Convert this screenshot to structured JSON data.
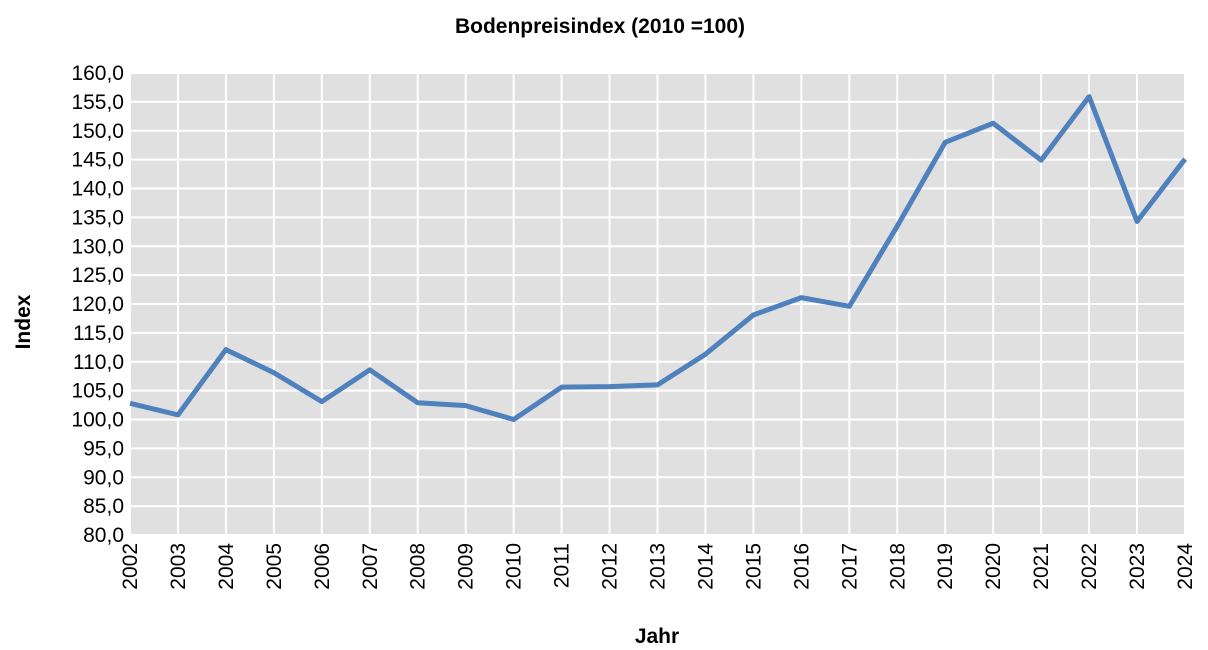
{
  "chart_data": {
    "type": "line",
    "title": "Bodenpreisindex (2010 =100)",
    "xlabel": "Jahr",
    "ylabel": "Index",
    "x": [
      2002,
      2003,
      2004,
      2005,
      2006,
      2007,
      2008,
      2009,
      2010,
      2011,
      2012,
      2013,
      2014,
      2015,
      2016,
      2017,
      2018,
      2019,
      2020,
      2021,
      2022,
      2023,
      2024
    ],
    "series": [
      {
        "name": "Bodenpreisindex",
        "color": "#4f81bd",
        "values": [
          102.8,
          100.8,
          112.1,
          108.1,
          103.1,
          108.6,
          102.9,
          102.4,
          100.0,
          105.6,
          105.7,
          106.0,
          111.3,
          118.1,
          121.1,
          119.6,
          133.5,
          148.0,
          151.3,
          144.9,
          155.9,
          134.3,
          145.1
        ]
      }
    ],
    "xlim": [
      2002,
      2024
    ],
    "xticks": [
      2002,
      2003,
      2004,
      2005,
      2006,
      2007,
      2008,
      2009,
      2010,
      2011,
      2012,
      2013,
      2014,
      2015,
      2016,
      2017,
      2018,
      2019,
      2020,
      2021,
      2022,
      2023,
      2024
    ],
    "ylim": [
      80,
      160
    ],
    "yticks": [
      {
        "value": 80,
        "label": "80,0"
      },
      {
        "value": 85,
        "label": "85,0"
      },
      {
        "value": 90,
        "label": "90,0"
      },
      {
        "value": 95,
        "label": "95,0"
      },
      {
        "value": 100,
        "label": "100,0"
      },
      {
        "value": 105,
        "label": "105,0"
      },
      {
        "value": 110,
        "label": "110,0"
      },
      {
        "value": 115,
        "label": "115,0"
      },
      {
        "value": 120,
        "label": "120,0"
      },
      {
        "value": 125,
        "label": "125,0"
      },
      {
        "value": 130,
        "label": "130,0"
      },
      {
        "value": 135,
        "label": "135,0"
      },
      {
        "value": 140,
        "label": "140,0"
      },
      {
        "value": 145,
        "label": "145,0"
      },
      {
        "value": 150,
        "label": "150,0"
      },
      {
        "value": 155,
        "label": "155,0"
      },
      {
        "value": 160,
        "label": "160,0"
      }
    ],
    "grid": true
  }
}
